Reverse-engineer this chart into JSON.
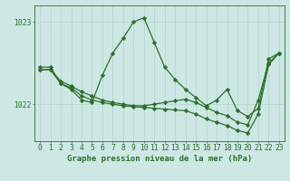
{
  "title": "Graphe pression niveau de la mer (hPa)",
  "bg_color": "#cde8e4",
  "line_color": "#2d6e2d",
  "grid_color": "#b0d4cc",
  "series": [
    {
      "x": [
        0,
        1,
        2,
        3,
        4,
        5,
        6,
        7,
        8,
        9,
        10,
        11,
        12,
        13,
        14,
        15,
        16,
        17,
        18,
        19,
        20,
        21,
        22,
        23
      ],
      "y": [
        1022.45,
        1022.45,
        1022.25,
        1022.18,
        1022.05,
        1022.02,
        1022.35,
        1022.62,
        1022.8,
        1023.0,
        1023.05,
        1022.75,
        1022.45,
        1022.3,
        1022.18,
        1022.08,
        1021.98,
        1022.05,
        1022.18,
        1021.92,
        1021.85,
        1021.95,
        1022.55,
        1022.62
      ]
    },
    {
      "x": [
        0,
        1,
        2,
        3,
        4,
        5,
        6,
        7,
        8,
        9,
        10,
        11,
        12,
        13,
        14,
        15,
        16,
        17,
        18,
        19,
        20,
        21,
        22,
        23
      ],
      "y": [
        1022.42,
        1022.42,
        1022.28,
        1022.22,
        1022.15,
        1022.1,
        1022.05,
        1022.02,
        1022.0,
        1021.98,
        1021.98,
        1022.0,
        1022.02,
        1022.04,
        1022.06,
        1022.02,
        1021.96,
        1021.9,
        1021.86,
        1021.78,
        1021.75,
        1022.05,
        1022.5,
        1022.62
      ]
    },
    {
      "x": [
        0,
        1,
        2,
        3,
        4,
        5,
        6,
        7,
        8,
        9,
        10,
        11,
        12,
        13,
        14,
        15,
        16,
        17,
        18,
        19,
        20,
        21,
        22,
        23
      ],
      "y": [
        1022.42,
        1022.42,
        1022.25,
        1022.2,
        1022.1,
        1022.05,
        1022.02,
        1022.0,
        1021.98,
        1021.97,
        1021.96,
        1021.95,
        1021.94,
        1021.93,
        1021.92,
        1021.88,
        1021.82,
        1021.78,
        1021.74,
        1021.68,
        1021.65,
        1021.88,
        1022.48,
        1022.62
      ]
    }
  ],
  "ylim": [
    1021.55,
    1023.2
  ],
  "yticks": [
    1022.0,
    1023.0
  ],
  "xlim": [
    -0.5,
    23.5
  ],
  "xticks": [
    0,
    1,
    2,
    3,
    4,
    5,
    6,
    7,
    8,
    9,
    10,
    11,
    12,
    13,
    14,
    15,
    16,
    17,
    18,
    19,
    20,
    21,
    22,
    23
  ],
  "marker": "D",
  "markersize": 2.2,
  "linewidth": 0.9,
  "title_fontsize": 6.5,
  "tick_fontsize": 5.8,
  "figsize": [
    3.2,
    2.0
  ],
  "dpi": 100
}
